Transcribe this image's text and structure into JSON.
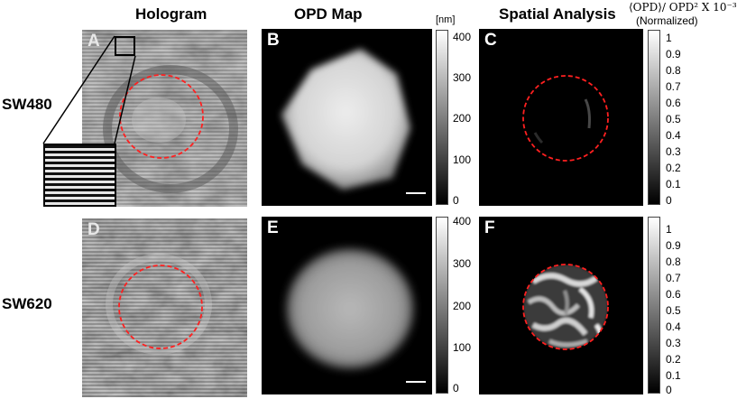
{
  "titles": {
    "hologram": "Hologram",
    "opd_map": "OPD Map",
    "spatial": "Spatial Analysis"
  },
  "rows": {
    "top": "SW480",
    "bottom": "SW620"
  },
  "panels": {
    "a": "A",
    "b": "B",
    "c": "C",
    "d": "D",
    "e": "E",
    "f": "F"
  },
  "opd_colorbar": {
    "unit": "[nm]",
    "ticks": [
      "400",
      "300",
      "200",
      "100",
      "0"
    ]
  },
  "spatial_colorbar": {
    "formula": "⟨OPD⟩/ OPD² X 10⁻³",
    "normalized": "(Normalized)",
    "ticks": [
      "1",
      "0.9",
      "0.8",
      "0.7",
      "0.6",
      "0.5",
      "0.4",
      "0.3",
      "0.2",
      "0.1",
      "0"
    ]
  },
  "colors": {
    "circle": "#ff2020",
    "background": "#ffffff"
  }
}
